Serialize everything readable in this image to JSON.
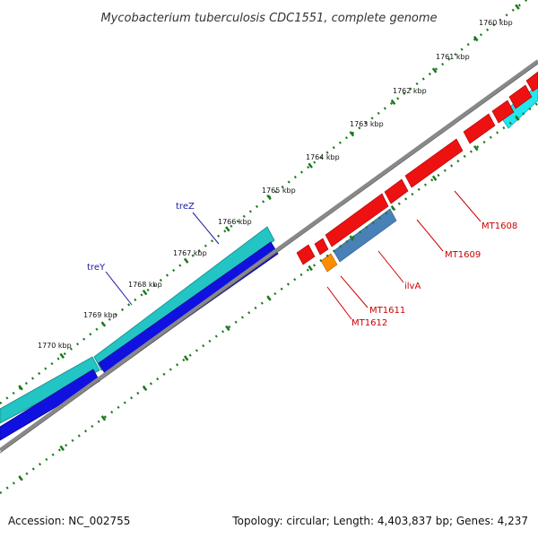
{
  "title": "Mycobacterium tuberculosis CDC1551, complete genome",
  "footer": {
    "accession": "Accession: NC_002755",
    "topology": "Topology: circular; Length: 4,403,837 bp; Genes: 4,237"
  },
  "colors": {
    "backbone": "#888888",
    "ticks": "#1e7a1e",
    "cyan_gene": "#22c4c4",
    "blue_gene": "#1010e0",
    "red_gene": "#ee1111",
    "steelblue_gene": "#4a80b8",
    "orange_gene": "#ff8c00",
    "label_blue": "#1a1aa6",
    "label_red": "#cc0000"
  },
  "ticks": [
    {
      "label": "1760 kbp"
    },
    {
      "label": "1761 kbp"
    },
    {
      "label": "1762 kbp"
    },
    {
      "label": "1763 kbp"
    },
    {
      "label": "1764 kbp"
    },
    {
      "label": "1765 kbp"
    },
    {
      "label": "1766 kbp"
    },
    {
      "label": "1767 kbp"
    },
    {
      "label": "1768 kbp"
    },
    {
      "label": "1769 kbp"
    },
    {
      "label": "1770 kbp"
    }
  ],
  "gene_labels": [
    {
      "name": "treZ",
      "color": "blue"
    },
    {
      "name": "treY",
      "color": "blue"
    },
    {
      "name": "MT1608",
      "color": "red"
    },
    {
      "name": "MT1609",
      "color": "red"
    },
    {
      "name": "ilvA",
      "color": "red"
    },
    {
      "name": "MT1611",
      "color": "red"
    },
    {
      "name": "MT1612",
      "color": "red"
    }
  ]
}
